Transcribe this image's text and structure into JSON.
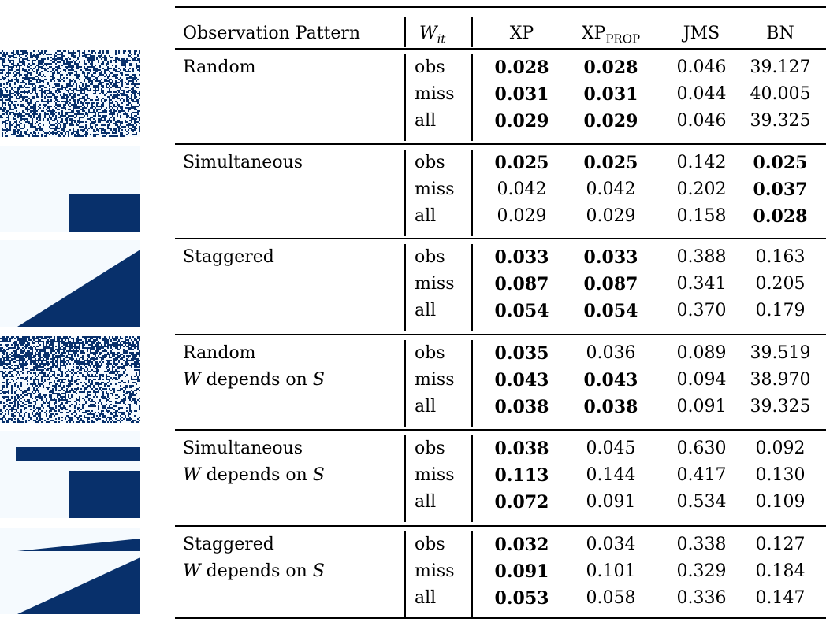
{
  "header": {
    "pattern": "Observation Pattern",
    "w": "W",
    "w_sub": "it",
    "xp": "XP",
    "xpprop": "XP",
    "xpprop_sub": "PROP",
    "jms": "JMS",
    "bn": "BN"
  },
  "colors": {
    "dark": "#08306b",
    "light": "#f5fafe"
  },
  "thumbnails": [
    "random-noise-icon",
    "simultaneous-block-icon",
    "staggered-triangle-icon",
    "random-noise-dense-top-icon",
    "simultaneous-block-with-bar-icon",
    "staggered-triangle-with-wedge-icon"
  ],
  "groups": [
    {
      "label1": "Random",
      "label2": "",
      "rows": [
        {
          "w": "obs",
          "xp": "0.028",
          "xpprop": "0.028",
          "jms": "0.046",
          "bn": "39.127",
          "bold": [
            true,
            true,
            false,
            false
          ]
        },
        {
          "w": "miss",
          "xp": "0.031",
          "xpprop": "0.031",
          "jms": "0.044",
          "bn": "40.005",
          "bold": [
            true,
            true,
            false,
            false
          ]
        },
        {
          "w": "all",
          "xp": "0.029",
          "xpprop": "0.029",
          "jms": "0.046",
          "bn": "39.325",
          "bold": [
            true,
            true,
            false,
            false
          ]
        }
      ]
    },
    {
      "label1": "Simultaneous",
      "label2": "",
      "rows": [
        {
          "w": "obs",
          "xp": "0.025",
          "xpprop": "0.025",
          "jms": "0.142",
          "bn": "0.025",
          "bold": [
            true,
            true,
            false,
            true
          ]
        },
        {
          "w": "miss",
          "xp": "0.042",
          "xpprop": "0.042",
          "jms": "0.202",
          "bn": "0.037",
          "bold": [
            false,
            false,
            false,
            true
          ]
        },
        {
          "w": "all",
          "xp": "0.029",
          "xpprop": "0.029",
          "jms": "0.158",
          "bn": "0.028",
          "bold": [
            false,
            false,
            false,
            true
          ]
        }
      ]
    },
    {
      "label1": "Staggered",
      "label2": "",
      "rows": [
        {
          "w": "obs",
          "xp": "0.033",
          "xpprop": "0.033",
          "jms": "0.388",
          "bn": "0.163",
          "bold": [
            true,
            true,
            false,
            false
          ]
        },
        {
          "w": "miss",
          "xp": "0.087",
          "xpprop": "0.087",
          "jms": "0.341",
          "bn": "0.205",
          "bold": [
            true,
            true,
            false,
            false
          ]
        },
        {
          "w": "all",
          "xp": "0.054",
          "xpprop": "0.054",
          "jms": "0.370",
          "bn": "0.179",
          "bold": [
            true,
            true,
            false,
            false
          ]
        }
      ]
    },
    {
      "label1": "Random",
      "label2": "W depends on S",
      "rows": [
        {
          "w": "obs",
          "xp": "0.035",
          "xpprop": "0.036",
          "jms": "0.089",
          "bn": "39.519",
          "bold": [
            true,
            false,
            false,
            false
          ]
        },
        {
          "w": "miss",
          "xp": "0.043",
          "xpprop": "0.043",
          "jms": "0.094",
          "bn": "38.970",
          "bold": [
            true,
            true,
            false,
            false
          ]
        },
        {
          "w": "all",
          "xp": "0.038",
          "xpprop": "0.038",
          "jms": "0.091",
          "bn": "39.325",
          "bold": [
            true,
            true,
            false,
            false
          ]
        }
      ]
    },
    {
      "label1": "Simultaneous",
      "label2": "W depends on S",
      "rows": [
        {
          "w": "obs",
          "xp": "0.038",
          "xpprop": "0.045",
          "jms": "0.630",
          "bn": "0.092",
          "bold": [
            true,
            false,
            false,
            false
          ]
        },
        {
          "w": "miss",
          "xp": "0.113",
          "xpprop": "0.144",
          "jms": "0.417",
          "bn": "0.130",
          "bold": [
            true,
            false,
            false,
            false
          ]
        },
        {
          "w": "all",
          "xp": "0.072",
          "xpprop": "0.091",
          "jms": "0.534",
          "bn": "0.109",
          "bold": [
            true,
            false,
            false,
            false
          ]
        }
      ]
    },
    {
      "label1": "Staggered",
      "label2": "W depends on S",
      "rows": [
        {
          "w": "obs",
          "xp": "0.032",
          "xpprop": "0.034",
          "jms": "0.338",
          "bn": "0.127",
          "bold": [
            true,
            false,
            false,
            false
          ]
        },
        {
          "w": "miss",
          "xp": "0.091",
          "xpprop": "0.101",
          "jms": "0.329",
          "bn": "0.184",
          "bold": [
            true,
            false,
            false,
            false
          ]
        },
        {
          "w": "all",
          "xp": "0.053",
          "xpprop": "0.058",
          "jms": "0.336",
          "bn": "0.147",
          "bold": [
            true,
            false,
            false,
            false
          ]
        }
      ]
    }
  ]
}
